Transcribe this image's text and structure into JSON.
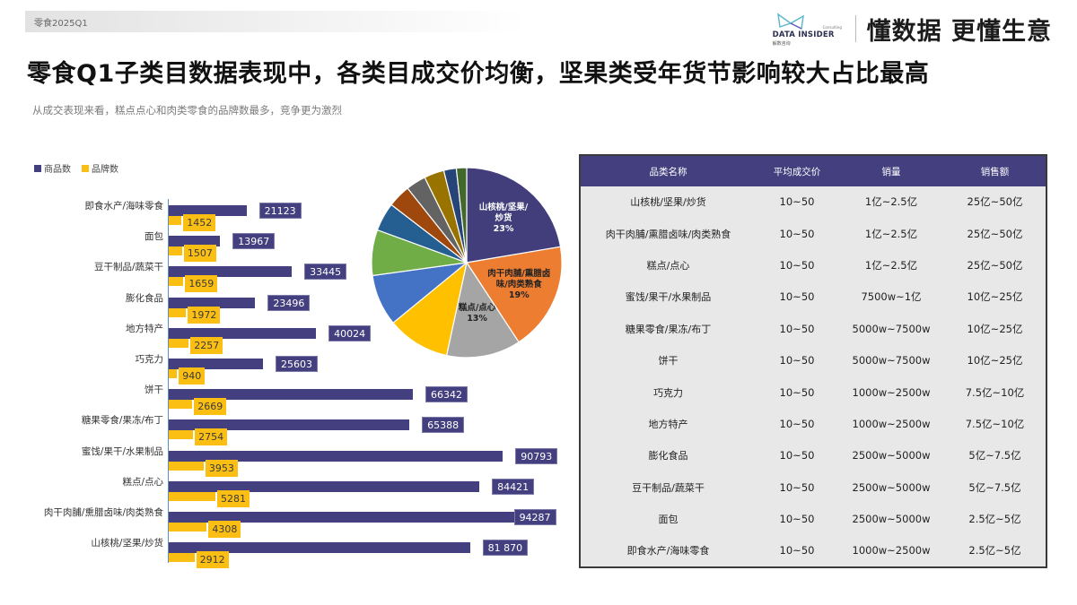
{
  "header": {
    "tag": "零食2025Q1",
    "brand_name": "DATA INSIDER",
    "brand_sub": "解数咨询",
    "brand_consulting": "Consulting",
    "slogan": "懂数据 更懂生意"
  },
  "title": "零食Q1子类目数据表现中，各类目成交价均衡，坚果类受年货节影响较大占比最高",
  "subtitle": "从成交表现来看，糕点点心和肉类零食的品牌数最多，竞争更为激烈",
  "colors": {
    "product_series": "#443f7f",
    "brand_series": "#fbbf14",
    "table_header": "#443f7f",
    "table_body": "#e8e8e8"
  },
  "chart_data": [
    {
      "type": "bar",
      "orientation": "horizontal",
      "title": "",
      "legend": [
        "商品数",
        "品牌数"
      ],
      "legend_position": "top-left",
      "categories": [
        "即食水产/海味零食",
        "面包",
        "豆干制品/蔬菜干",
        "膨化食品",
        "地方特产",
        "巧克力",
        "饼干",
        "糖果零食/果冻/布丁",
        "蜜饯/果干/水果制品",
        "糕点/点心",
        "肉干肉脯/熏腊卤味/肉类熟食",
        "山核桃/坚果/炒货"
      ],
      "series": [
        {
          "name": "商品数",
          "color": "#443f7f",
          "values": [
            21123,
            13967,
            33445,
            23496,
            40024,
            25603,
            66342,
            65388,
            90793,
            84421,
            94287,
            81870
          ]
        },
        {
          "name": "品牌数",
          "color": "#fbbf14",
          "values": [
            1452,
            1507,
            1659,
            1972,
            2257,
            940,
            2669,
            2754,
            3953,
            5281,
            4308,
            2912
          ]
        }
      ],
      "value_labels": {
        "product": [
          "21123",
          "13967",
          "33445",
          "23496",
          "40024",
          "25603",
          "66342",
          "65388",
          "90793",
          "84421",
          "94287",
          "81 870"
        ],
        "brand": [
          "1452",
          "1507",
          "1659",
          "1972",
          "2257",
          "940",
          "2669",
          "2754",
          "3953",
          "5281",
          "4308",
          "2912"
        ]
      },
      "xmax": 100000,
      "grid": false
    },
    {
      "type": "pie",
      "title": "",
      "slices": [
        {
          "label": "山核桃/坚果/炒货",
          "value": 23,
          "color": "#423e7c",
          "show_label": true,
          "label_text": "山核桃/坚果/\n炒货\n23%",
          "label_color": "#ffffff"
        },
        {
          "label": "肉干肉脯/熏腊卤味/肉类熟食",
          "value": 19,
          "color": "#ed7d31",
          "show_label": true,
          "label_text": "肉干肉脯/熏腊卤\n味/肉类熟食\n19%",
          "label_color": "#222222"
        },
        {
          "label": "糕点/点心",
          "value": 13,
          "color": "#a5a5a5",
          "show_label": true,
          "label_text": "糕点/点心\n13%",
          "label_color": "#222222"
        },
        {
          "label": "蜜饯/果干/水果制品",
          "value": 11,
          "color": "#ffc000",
          "show_label": false
        },
        {
          "label": "饼干",
          "value": 9,
          "color": "#4472c4",
          "show_label": false
        },
        {
          "label": "糖果零食/果冻/布丁",
          "value": 8,
          "color": "#70ad47",
          "show_label": false
        },
        {
          "label": "地方特产",
          "value": 5,
          "color": "#255e91",
          "show_label": false
        },
        {
          "label": "巧克力",
          "value": 4,
          "color": "#9e480e",
          "show_label": false
        },
        {
          "label": "膨化食品",
          "value": 3.5,
          "color": "#636363",
          "show_label": false
        },
        {
          "label": "豆干制品/蔬菜干",
          "value": 3.5,
          "color": "#997300",
          "show_label": false
        },
        {
          "label": "面包",
          "value": 2.2,
          "color": "#264478",
          "show_label": false
        },
        {
          "label": "即食水产/海味零食",
          "value": 1.8,
          "color": "#43682b",
          "show_label": false
        }
      ]
    },
    {
      "type": "table",
      "columns": [
        "品类名称",
        "平均成交价",
        "销量",
        "销售额"
      ],
      "rows": [
        [
          "山核桃/坚果/炒货",
          "10~50",
          "1亿~2.5亿",
          "25亿~50亿"
        ],
        [
          "肉干肉脯/熏腊卤味/肉类熟食",
          "10~50",
          "1亿~2.5亿",
          "25亿~50亿"
        ],
        [
          "糕点/点心",
          "10~50",
          "1亿~2.5亿",
          "25亿~50亿"
        ],
        [
          "蜜饯/果干/水果制品",
          "10~50",
          "7500w~1亿",
          "10亿~25亿"
        ],
        [
          "糖果零食/果冻/布丁",
          "10~50",
          "5000w~7500w",
          "10亿~25亿"
        ],
        [
          "饼干",
          "10~50",
          "5000w~7500w",
          "10亿~25亿"
        ],
        [
          "巧克力",
          "10~50",
          "1000w~2500w",
          "7.5亿~10亿"
        ],
        [
          "地方特产",
          "10~50",
          "1000w~2500w",
          "7.5亿~10亿"
        ],
        [
          "膨化食品",
          "10~50",
          "2500w~5000w",
          "5亿~7.5亿"
        ],
        [
          "豆干制品/蔬菜干",
          "10~50",
          "2500w~5000w",
          "5亿~7.5亿"
        ],
        [
          "面包",
          "10~50",
          "2500w~5000w",
          "2.5亿~5亿"
        ],
        [
          "即食水产/海味零食",
          "10~50",
          "1000w~2500w",
          "2.5亿~5亿"
        ]
      ]
    }
  ]
}
